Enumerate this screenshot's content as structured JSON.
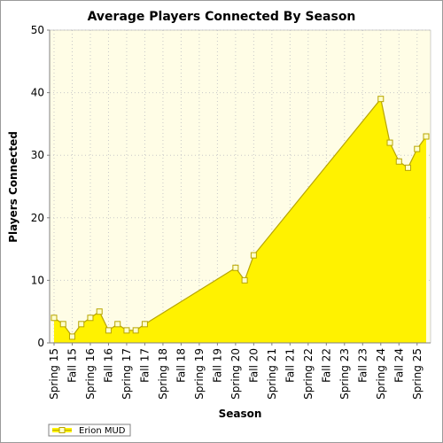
{
  "chart_data": {
    "type": "area",
    "title": "Average Players Connected By Season",
    "xlabel": "Season",
    "ylabel": "Players Connected",
    "ylim": [
      0,
      50
    ],
    "yticks": [
      0,
      10,
      20,
      30,
      40,
      50
    ],
    "grid": true,
    "legend_position": "bottom-left",
    "categories": [
      "Spring 15",
      "Fall 15",
      "Spring 16",
      "Fall 16",
      "Spring 17",
      "Fall 17",
      "Spring 18",
      "Fall 18",
      "Spring 19",
      "Fall 19",
      "Spring 20",
      "Fall 20",
      "Spring 21",
      "Fall 21",
      "Spring 22",
      "Fall 22",
      "Spring 23",
      "Fall 23",
      "Spring 24",
      "Fall 24",
      "Spring 25"
    ],
    "x_tick_positions": [
      0,
      2,
      4,
      6,
      8,
      10,
      12,
      14,
      16,
      18,
      20,
      22,
      24,
      26,
      28,
      30,
      32,
      34,
      36,
      38,
      40
    ],
    "x_range": [
      0,
      41
    ],
    "series": [
      {
        "name": "Erion MUD",
        "x": [
          0,
          1,
          2,
          3,
          4,
          5,
          6,
          7,
          8,
          9,
          10,
          20,
          21,
          22,
          36,
          37,
          38,
          39,
          40,
          41
        ],
        "values": [
          4,
          3,
          1,
          3,
          4,
          5,
          2,
          3,
          2,
          2,
          3,
          12,
          10,
          14,
          39,
          32,
          29,
          28,
          31,
          33
        ]
      }
    ],
    "colors": {
      "plot_background": "#fffde6",
      "area_fill": "#fff200",
      "line": "#b8a500",
      "marker_fill": "#ffffcc",
      "grid": "#c8c8c8"
    }
  }
}
